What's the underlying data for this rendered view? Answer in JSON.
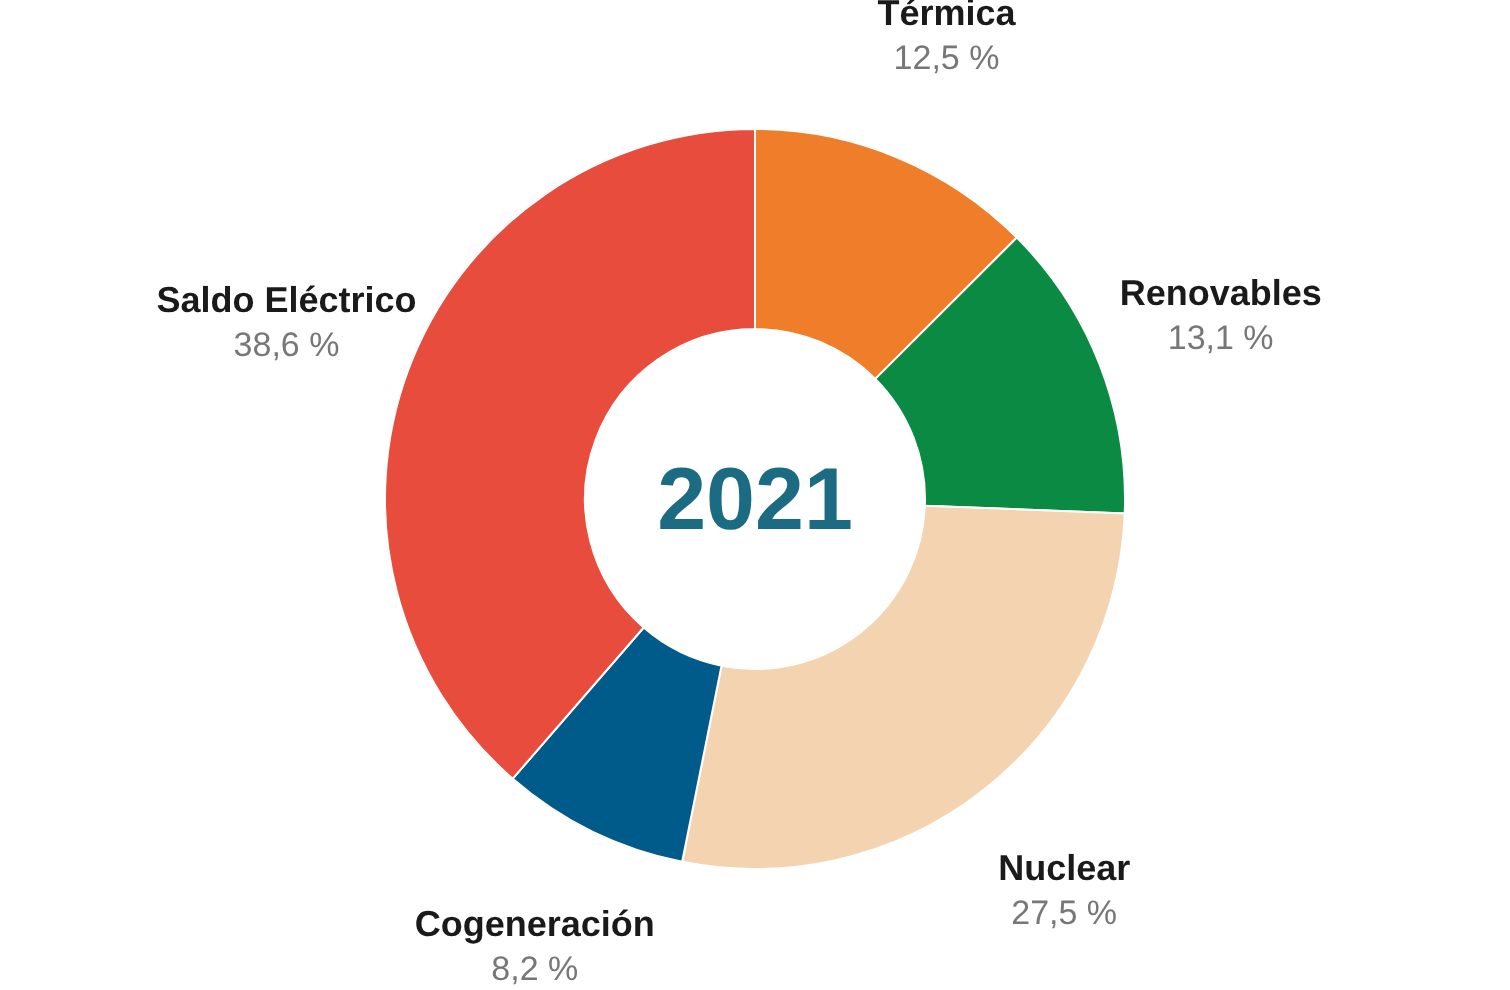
{
  "chart_data": {
    "type": "donut",
    "title": "2021",
    "categories": [
      "Térmica",
      "Renovables",
      "Nuclear",
      "Cogeneración",
      "Saldo Eléctrico"
    ],
    "values": [
      12.5,
      13.1,
      27.5,
      8.2,
      38.6
    ],
    "value_labels": [
      "12,5 %",
      "13,1 %",
      "27,5 %",
      "8,2 %",
      "38,6 %"
    ],
    "colors": [
      "#f07d2a",
      "#0b8a44",
      "#f4d3b0",
      "#005a8a",
      "#e84c3d"
    ],
    "legend": false
  }
}
